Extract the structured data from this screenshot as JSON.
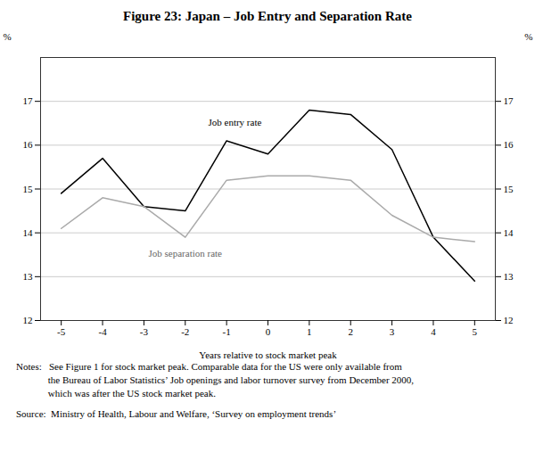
{
  "chart_data": {
    "type": "line",
    "title": "Figure 23: Japan – Job Entry and Separation Rate",
    "xlabel": "Years relative to stock market peak",
    "ylabel": "%",
    "y2label": "%",
    "x": [
      -5,
      -4,
      -3,
      -2,
      -1,
      0,
      1,
      2,
      3,
      4,
      5
    ],
    "series": [
      {
        "name": "Job entry rate",
        "color": "#000000",
        "values": [
          14.9,
          15.7,
          14.6,
          14.5,
          16.1,
          15.8,
          16.8,
          16.7,
          15.9,
          13.9,
          12.9
        ]
      },
      {
        "name": "Job separation rate",
        "color": "#aaaaaa",
        "values": [
          14.1,
          14.8,
          14.6,
          13.9,
          15.2,
          15.3,
          15.3,
          15.2,
          14.4,
          13.9,
          13.8
        ]
      }
    ],
    "xlim": [
      -5.5,
      5.5
    ],
    "xticks": [
      -5,
      -4,
      -3,
      -2,
      -1,
      0,
      1,
      2,
      3,
      4,
      5
    ],
    "ylim": [
      12,
      18
    ],
    "yticks": [
      12,
      13,
      14,
      15,
      16,
      17
    ],
    "y2lim": [
      12,
      18
    ],
    "y2ticks": [
      12,
      13,
      14,
      15,
      16,
      17
    ],
    "grid": true,
    "annotations": [
      {
        "text": "Job entry rate",
        "x": -0.8,
        "y": 16.45,
        "color": "#000000"
      },
      {
        "text": "Job separation rate",
        "x": -2.0,
        "y": 13.45,
        "color": "#666666"
      }
    ],
    "notes": [
      "Notes:   See Figure 1 for stock market peak. Comparable data for the US were only available from",
      "             the Bureau of Labor Statistics’ Job openings and labor turnover survey from December 2000,",
      "             which was after the US stock market peak."
    ],
    "source": "Source:  Ministry of Health, Labour and Welfare, ‘Survey on employment trends’"
  }
}
